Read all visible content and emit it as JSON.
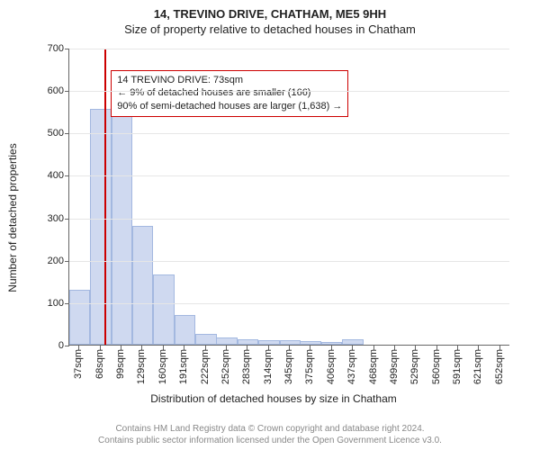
{
  "title_line1": "14, TREVINO DRIVE, CHATHAM, ME5 9HH",
  "title_line2": "Size of property relative to detached houses in Chatham",
  "ylabel": "Number of detached properties",
  "xlabel": "Distribution of detached houses by size in Chatham",
  "footer_line1": "Contains HM Land Registry data © Crown copyright and database right 2024.",
  "footer_line2": "Contains public sector information licensed under the Open Government Licence v3.0.",
  "annotation": {
    "line1": "14 TREVINO DRIVE: 73sqm",
    "line2": "← 9% of detached houses are smaller (166)",
    "line3": "90% of semi-detached houses are larger (1,638) →"
  },
  "chart": {
    "type": "histogram",
    "ymax": 700,
    "ytick_step": 100,
    "yticks": [
      0,
      100,
      200,
      300,
      400,
      500,
      600,
      700
    ],
    "xticks": [
      "37sqm",
      "68sqm",
      "99sqm",
      "129sqm",
      "160sqm",
      "191sqm",
      "222sqm",
      "252sqm",
      "283sqm",
      "314sqm",
      "345sqm",
      "375sqm",
      "406sqm",
      "437sqm",
      "468sqm",
      "499sqm",
      "529sqm",
      "560sqm",
      "591sqm",
      "621sqm",
      "652sqm"
    ],
    "xtick_centers": [
      37,
      68,
      99,
      129,
      160,
      191,
      222,
      252,
      283,
      314,
      345,
      375,
      406,
      437,
      468,
      499,
      529,
      560,
      591,
      621,
      652
    ],
    "xmin": 22,
    "xmax": 667,
    "bar_half_width_sqm": 15.5,
    "bars": [
      {
        "center": 37,
        "value": 130
      },
      {
        "center": 68,
        "value": 555
      },
      {
        "center": 99,
        "value": 550
      },
      {
        "center": 129,
        "value": 280
      },
      {
        "center": 160,
        "value": 165
      },
      {
        "center": 191,
        "value": 70
      },
      {
        "center": 222,
        "value": 25
      },
      {
        "center": 252,
        "value": 18
      },
      {
        "center": 283,
        "value": 12
      },
      {
        "center": 314,
        "value": 10
      },
      {
        "center": 345,
        "value": 10
      },
      {
        "center": 375,
        "value": 9
      },
      {
        "center": 406,
        "value": 7
      },
      {
        "center": 437,
        "value": 12
      }
    ],
    "marker_x_sqm": 73,
    "bar_fill": "#cfd9f0",
    "bar_stroke": "#a3b8e0",
    "marker_color": "#cc0000",
    "grid_color": "#e6e6e6",
    "axis_color": "#666666",
    "background": "#ffffff",
    "font_family": "Arial",
    "title_fontsize": 13,
    "label_fontsize": 12,
    "tick_fontsize": 11,
    "annot_fontsize": 11,
    "annot_box_left_sqm": 75,
    "annot_box_top_value": 650
  }
}
